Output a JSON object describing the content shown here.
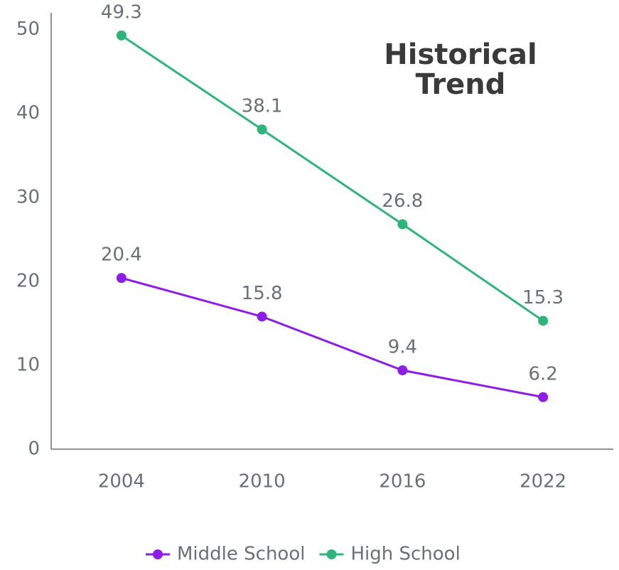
{
  "chart_data": {
    "type": "line",
    "title": "Historical Trend",
    "categories": [
      "2004",
      "2010",
      "2016",
      "2022"
    ],
    "series": [
      {
        "name": "Middle School",
        "color": "#8d1ee6",
        "values": [
          20.4,
          15.8,
          9.4,
          6.2
        ]
      },
      {
        "name": "High School",
        "color": "#2fb47c",
        "values": [
          49.3,
          38.1,
          26.8,
          15.3
        ]
      }
    ],
    "ylim": [
      0,
      52
    ],
    "yticks": [
      0,
      10,
      20,
      30,
      40,
      50
    ],
    "grid": false
  }
}
